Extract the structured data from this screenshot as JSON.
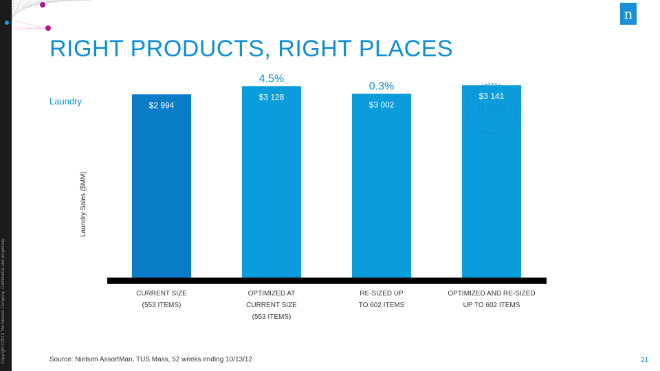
{
  "slide": {
    "title": "RIGHT PRODUCTS, RIGHT PLACES",
    "subtitle": "Laundry",
    "copyright": "Copyright ©2013 The Nielsen Company. Confidential and proprietary.",
    "logo_text": "n",
    "source": "Source: Nielsen AssortMan, TUS Mass, 52 weeks ending 10/13/12",
    "page_number": "21"
  },
  "colors": {
    "accent": "#0b8ed6",
    "bar_primary": "#0a7bc7",
    "bar_secondary": "#0b9cdc",
    "axis": "#000000"
  },
  "chart_data": {
    "type": "bar",
    "title": "",
    "xlabel": "",
    "ylabel": "Laundry Sales ($MM)",
    "ylim": [
      0,
      3300
    ],
    "categories": [
      [
        "CURRENT SIZE",
        "(553 ITEMS)"
      ],
      [
        "OPTIMIZED AT",
        "CURRENT SIZE",
        "(553 ITEMS)"
      ],
      [
        "RE-SIZED UP",
        "TO 602 ITEMS"
      ],
      [
        "OPTIMIZED AND RE-SIZED",
        "UP TO 602 ITEMS"
      ]
    ],
    "values": [
      2994,
      3128,
      3002,
      3141
    ],
    "value_labels": [
      "$2 994",
      "$3 128",
      "$3 002",
      "$3 141"
    ],
    "growth_labels": [
      "",
      "4.5%",
      "0.3%",
      "4.9%"
    ],
    "highlight_index": 3,
    "grid": false,
    "legend": "none"
  }
}
